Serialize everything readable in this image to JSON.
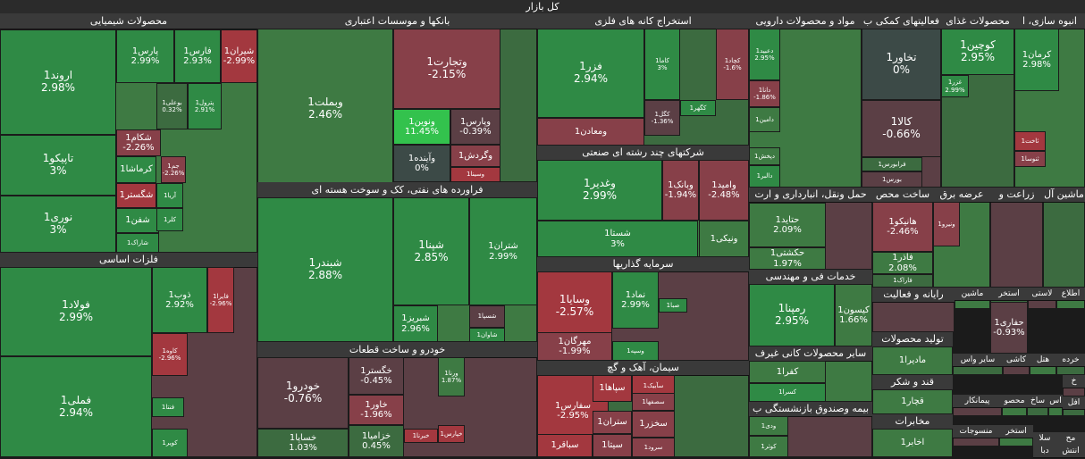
{
  "title": "کل بازار",
  "colors": {
    "g3": "#2f8a45",
    "g2": "#3e7a43",
    "g1": "#3c6b40",
    "n": "#3c4a47",
    "r1": "#5b3f45",
    "r2": "#874049",
    "r3": "#a3383f",
    "bright": "#33c24d"
  },
  "chart_data": {
    "type": "treemap",
    "title": "کل بازار",
    "sectors": [
      {
        "name": "محصولات شیمیایی",
        "tiles": [
          {
            "name": "اروند1",
            "change": "2.98%",
            "value": 2.98
          },
          {
            "name": "تاپیکو1",
            "change": "3%",
            "value": 3
          },
          {
            "name": "نوری1",
            "change": "3%",
            "value": 3
          },
          {
            "name": "پارس1",
            "change": "2.99%",
            "value": 2.99
          },
          {
            "name": "فارس1",
            "change": "2.93%",
            "value": 2.93
          },
          {
            "name": "شیران1",
            "change": "-2.99%",
            "value": -2.99
          },
          {
            "name": "بوعلی1",
            "change": "0.32%",
            "value": 0.32
          },
          {
            "name": "پترول1",
            "change": "2.91%",
            "value": 2.91
          },
          {
            "name": "شکام1",
            "change": "-2.26%",
            "value": -2.26
          },
          {
            "name": "کرماشا1",
            "change": "",
            "value": 2.5
          },
          {
            "name": "جم1",
            "change": "-2.26%",
            "value": -2.26
          },
          {
            "name": "شگستر1",
            "change": "",
            "value": -2.5
          },
          {
            "name": "آریا1",
            "change": "",
            "value": 2.6
          },
          {
            "name": "شفن1",
            "change": "",
            "value": 2.8
          },
          {
            "name": "کلر1",
            "change": "",
            "value": 2.7
          },
          {
            "name": "شاراک1",
            "change": "",
            "value": 2.8
          }
        ]
      },
      {
        "name": "فلزات اساسی",
        "tiles": [
          {
            "name": "فولاد1",
            "change": "2.99%",
            "value": 2.99
          },
          {
            "name": "فملی1",
            "change": "2.94%",
            "value": 2.94
          },
          {
            "name": "ذوب1",
            "change": "2.92%",
            "value": 2.92
          },
          {
            "name": "فایرا1",
            "change": "-2.96%",
            "value": -2.96
          },
          {
            "name": "کاوه1",
            "change": "-2.96%",
            "value": -2.96
          },
          {
            "name": "فنتا1",
            "change": "",
            "value": 2.5
          },
          {
            "name": "کویر1",
            "change": "",
            "value": 2.8
          }
        ]
      },
      {
        "name": "بانکها و موسسات اعتباری",
        "tiles": [
          {
            "name": "وبملت1",
            "change": "2.46%",
            "value": 2.46
          },
          {
            "name": "وتجارت1",
            "change": "-2.15%",
            "value": -2.15
          },
          {
            "name": "ونوین1",
            "change": "11.45%",
            "value": 11.45
          },
          {
            "name": "وپارس1",
            "change": "-0.39%",
            "value": -0.39
          },
          {
            "name": "وآینده1",
            "change": "0%",
            "value": 0
          },
          {
            "name": "وگردش1",
            "change": "",
            "value": -1.5
          },
          {
            "name": "وسینا1",
            "change": "",
            "value": -2.6
          }
        ]
      },
      {
        "name": "فراورده های نفتی، کک و سوخت هسته ای",
        "tiles": [
          {
            "name": "شبندر1",
            "change": "2.88%",
            "value": 2.88
          },
          {
            "name": "شپنا1",
            "change": "2.85%",
            "value": 2.85
          },
          {
            "name": "شتران1",
            "change": "2.99%",
            "value": 2.99
          },
          {
            "name": "شبریز1",
            "change": "2.96%",
            "value": 2.96
          },
          {
            "name": "شسپا1",
            "change": "",
            "value": -1.2
          },
          {
            "name": "شاوان1",
            "change": "",
            "value": 2.6
          }
        ]
      },
      {
        "name": "خودرو و ساخت قطعات",
        "tiles": [
          {
            "name": "خودرو1",
            "change": "-0.76%",
            "value": -0.76
          },
          {
            "name": "خساپا1",
            "change": "1.03%",
            "value": 1.03
          },
          {
            "name": "خگستر1",
            "change": "-0.45%",
            "value": -0.45
          },
          {
            "name": "خاور1",
            "change": "-1.96%",
            "value": -1.96
          },
          {
            "name": "خزامیا1",
            "change": "0.45%",
            "value": 0.45
          },
          {
            "name": "ورنا1",
            "change": "1.87%",
            "value": 1.87
          },
          {
            "name": "خپارس1",
            "change": "",
            "value": -2.5
          },
          {
            "name": "خبرنا1",
            "change": "",
            "value": -2.6
          }
        ]
      },
      {
        "name": "استخراج کانه های فلزی",
        "tiles": [
          {
            "name": "فزر1",
            "change": "2.94%",
            "value": 2.94
          },
          {
            "name": "کاما1",
            "change": "3%",
            "value": 3
          },
          {
            "name": "کچاد1",
            "change": "-1.6%",
            "value": -1.6
          },
          {
            "name": "کگهر1",
            "change": "",
            "value": 2.5
          },
          {
            "name": "کگل1",
            "change": "-1.36%",
            "value": -1.36
          },
          {
            "name": "ومعادن1",
            "change": "",
            "value": -1.8
          }
        ]
      },
      {
        "name": "شرکتهای چند رشته ای صنعتی",
        "tiles": [
          {
            "name": "وغدیر1",
            "change": "2.99%",
            "value": 2.99
          },
          {
            "name": "شستا1",
            "change": "3%",
            "value": 3
          },
          {
            "name": "وبانک1",
            "change": "-1.94%",
            "value": -1.94
          },
          {
            "name": "وامید1",
            "change": "-2.48%",
            "value": -2.48
          },
          {
            "name": "ونیکی1",
            "change": "",
            "value": 2.2
          }
        ]
      },
      {
        "name": "سرمایه گذاریها",
        "tiles": [
          {
            "name": "وسایا1",
            "change": "-2.57%",
            "value": -2.57
          },
          {
            "name": "مهرگان1",
            "change": "-1.99%",
            "value": -1.99
          },
          {
            "name": "نماد1",
            "change": "2.99%",
            "value": 2.99
          },
          {
            "name": "صبا1",
            "change": "",
            "value": 2.5
          },
          {
            "name": "وسپه1",
            "change": "",
            "value": 2.6
          }
        ]
      },
      {
        "name": "سیمان، آهک و گچ",
        "tiles": [
          {
            "name": "سفارس1",
            "change": "-2.95%",
            "value": -2.95
          },
          {
            "name": "سباقر1",
            "change": "",
            "value": -2.5
          },
          {
            "name": "سپاها1",
            "change": "",
            "value": -2.6
          },
          {
            "name": "ستران1",
            "change": "",
            "value": -2.2
          },
          {
            "name": "سیتا1",
            "change": "",
            "value": -2.4
          },
          {
            "name": "سآبیک1",
            "change": "",
            "value": -2.5
          },
          {
            "name": "سصفها1",
            "change": "",
            "value": -1.9
          },
          {
            "name": "سخزر1",
            "change": "",
            "value": -2.1
          },
          {
            "name": "سرود1",
            "change": "",
            "value": -2.3
          }
        ]
      },
      {
        "name": "مواد و محصولات دارویی",
        "tiles": [
          {
            "name": "دعبید1",
            "change": "2.95%",
            "value": 2.95
          },
          {
            "name": "دانا1",
            "change": "-1.86%",
            "value": -1.86
          },
          {
            "name": "دامین1",
            "change": "",
            "value": 2.4
          },
          {
            "name": "دپخش1",
            "change": "",
            "value": 2.2
          },
          {
            "name": "دالبر1",
            "change": "",
            "value": 2.6
          }
        ]
      },
      {
        "name": "فعالیتهای کمکی ب",
        "tiles": [
          {
            "name": "تخاور1",
            "change": "0%",
            "value": 0
          },
          {
            "name": "کالا1",
            "change": "-0.66%",
            "value": -0.66
          },
          {
            "name": "فرابورس1",
            "change": "",
            "value": 0.3
          },
          {
            "name": "بورس1",
            "change": "",
            "value": -0.5
          }
        ]
      },
      {
        "name": "محصولات غذای",
        "tiles": [
          {
            "name": "کوچین1",
            "change": "2.95%",
            "value": 2.95
          },
          {
            "name": "غزر1",
            "change": "2.99%",
            "value": 2.99
          }
        ]
      },
      {
        "name": "انبوه سازی، ا",
        "tiles": [
          {
            "name": "کرمان1",
            "change": "2.98%",
            "value": 2.98
          },
          {
            "name": "ثاخت1",
            "change": "",
            "value": -2.6
          },
          {
            "name": "ثنوسا1",
            "change": "",
            "value": -2.4
          }
        ]
      },
      {
        "name": "حمل ونقل، انبارداری و ارت",
        "tiles": [
          {
            "name": "حتاید1",
            "change": "2.09%",
            "value": 2.09
          },
          {
            "name": "حکشتی1",
            "change": "1.97%",
            "value": 1.97
          }
        ]
      },
      {
        "name": "خدمات فی و مهندسی",
        "tiles": [
          {
            "name": "رمپنا1",
            "change": "2.95%",
            "value": 2.95
          },
          {
            "name": "کیسون1",
            "change": "1.66%",
            "value": 1.66
          }
        ]
      },
      {
        "name": "سایر محصولات کانی غیرف",
        "tiles": [
          {
            "name": "کفرا1",
            "change": "",
            "value": 2.4
          },
          {
            "name": "کسرا1",
            "change": "",
            "value": 2.6
          }
        ]
      },
      {
        "name": "بیمه وصندوق بازنشستگی ب",
        "tiles": [
          {
            "name": "ودی1",
            "change": "",
            "value": 2.2
          },
          {
            "name": "کوثر1",
            "change": "",
            "value": 2.1
          }
        ]
      },
      {
        "name": "ساخت محص",
        "tiles": [
          {
            "name": "هانیکو1",
            "change": "-2.46%",
            "value": -2.46
          },
          {
            "name": "فاذر1",
            "change": "2.08%",
            "value": 2.08
          },
          {
            "name": "فاراک1",
            "change": "",
            "value": 1.4
          }
        ]
      },
      {
        "name": "عرضه برق",
        "tiles": [
          {
            "name": "ونیرو1",
            "change": "",
            "value": -2.3
          }
        ]
      },
      {
        "name": "زراعت و",
        "tiles": []
      },
      {
        "name": "ماشین آل",
        "tiles": []
      },
      {
        "name": "اطلاع",
        "tiles": []
      },
      {
        "name": "لاستی",
        "tiles": []
      },
      {
        "name": "استخر",
        "tiles": []
      },
      {
        "name": "ماشین",
        "tiles": []
      },
      {
        "name": "رایانه و فعالیت",
        "tiles": [
          {
            "name": "حفاری1",
            "change": "-0.93%",
            "value": -0.93
          }
        ]
      },
      {
        "name": "تولید محصولات",
        "tiles": [
          {
            "name": "مادیرا1",
            "change": "",
            "value": 2.3
          }
        ]
      },
      {
        "name": "قند و شکر",
        "tiles": [
          {
            "name": "قچار1",
            "change": "",
            "value": 2.2
          }
        ]
      },
      {
        "name": "مخابرات",
        "tiles": [
          {
            "name": "اخابر1",
            "change": "",
            "value": 2.4
          }
        ]
      },
      {
        "name": "خرده",
        "tiles": []
      },
      {
        "name": "هتل",
        "tiles": []
      },
      {
        "name": "کاشی",
        "tiles": []
      },
      {
        "name": "سایر واس",
        "tiles": []
      },
      {
        "name": "محصو",
        "tiles": []
      },
      {
        "name": "پیمانکار",
        "tiles": []
      },
      {
        "name": "ساخ",
        "tiles": []
      },
      {
        "name": "اس",
        "tiles": []
      },
      {
        "name": "خ",
        "tiles": []
      },
      {
        "name": "افل",
        "tiles": []
      },
      {
        "name": "استخر",
        "tiles": []
      },
      {
        "name": "منسوجات",
        "tiles": []
      },
      {
        "name": "سلا",
        "tiles": []
      },
      {
        "name": "مح",
        "tiles": []
      },
      {
        "name": "دبا",
        "tiles": []
      },
      {
        "name": "انتش",
        "tiles": []
      }
    ]
  }
}
